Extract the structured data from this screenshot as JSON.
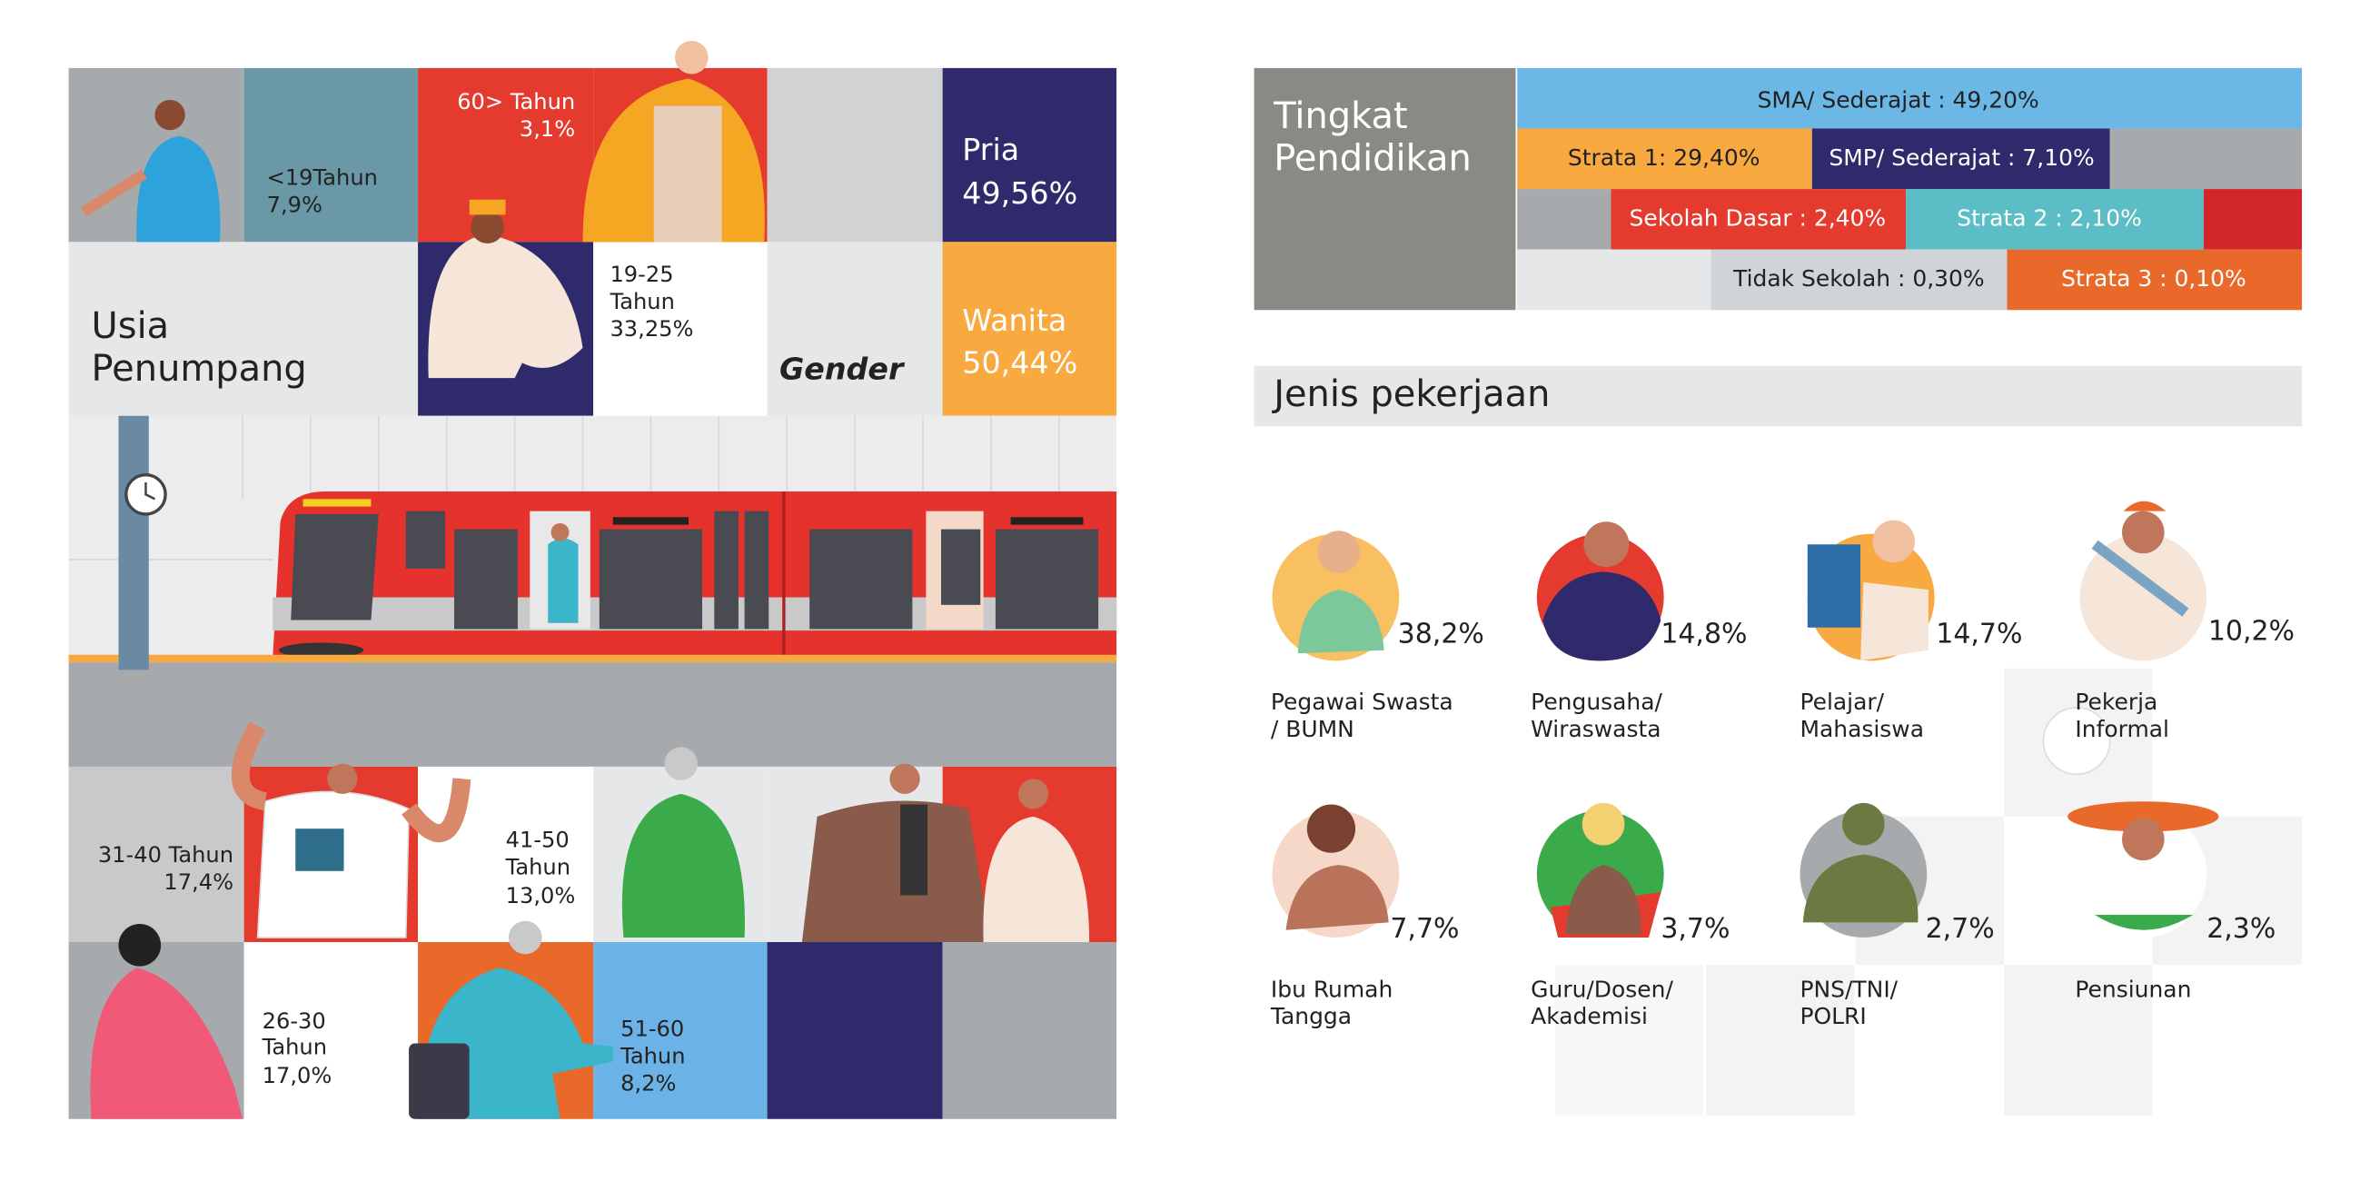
{
  "usia": {
    "title": [
      "Usia",
      "Penumpang"
    ],
    "groups": [
      {
        "label": [
          "<19Tahun"
        ],
        "value": "7,9%"
      },
      {
        "label": [
          "60> Tahun"
        ],
        "value": "3,1%"
      },
      {
        "label": [
          "19-25",
          "Tahun"
        ],
        "value": "33,25%"
      },
      {
        "label": [
          "31-40 Tahun"
        ],
        "value": "17,4%"
      },
      {
        "label": [
          "41-50",
          "Tahun"
        ],
        "value": "13,0%"
      },
      {
        "label": [
          "26-30",
          "Tahun"
        ],
        "value": "17,0%"
      },
      {
        "label": [
          "51-60",
          "Tahun"
        ],
        "value": "8,2%"
      }
    ]
  },
  "gender": {
    "title": "Gender",
    "items": [
      {
        "label": "Pria",
        "value": "49,56%"
      },
      {
        "label": "Wanita",
        "value": "50,44%"
      }
    ]
  },
  "pendidikan": {
    "title": [
      "Tingkat",
      "Pendidikan"
    ],
    "items": [
      "SMA/ Sederajat : 49,20%",
      "Strata 1: 29,40%",
      "SMP/ Sederajat : 7,10%",
      "Sekolah Dasar : 2,40%",
      "Strata 2 : 2,10%",
      "Tidak Sekolah : 0,30%",
      "Strata 3 : 0,10%"
    ]
  },
  "pekerjaan": {
    "title": "Jenis pekerjaan",
    "items": [
      {
        "label": [
          "Pegawai Swasta",
          "/ BUMN"
        ],
        "value": "38,2%"
      },
      {
        "label": [
          "Pengusaha/",
          "Wiraswasta"
        ],
        "value": "14,8%"
      },
      {
        "label": [
          "Pelajar/",
          "Mahasiswa"
        ],
        "value": "14,7%"
      },
      {
        "label": [
          "Pekerja",
          "Informal"
        ],
        "value": "10,2%"
      },
      {
        "label": [
          "Ibu Rumah",
          "Tangga"
        ],
        "value": "7,7%"
      },
      {
        "label": [
          "Guru/Dosen/",
          "Akademisi"
        ],
        "value": "3,7%"
      },
      {
        "label": [
          "PNS/TNI/",
          "POLRI"
        ],
        "value": "2,7%"
      },
      {
        "label": [
          "Pensiunan"
        ],
        "value": "2,3%"
      }
    ]
  }
}
